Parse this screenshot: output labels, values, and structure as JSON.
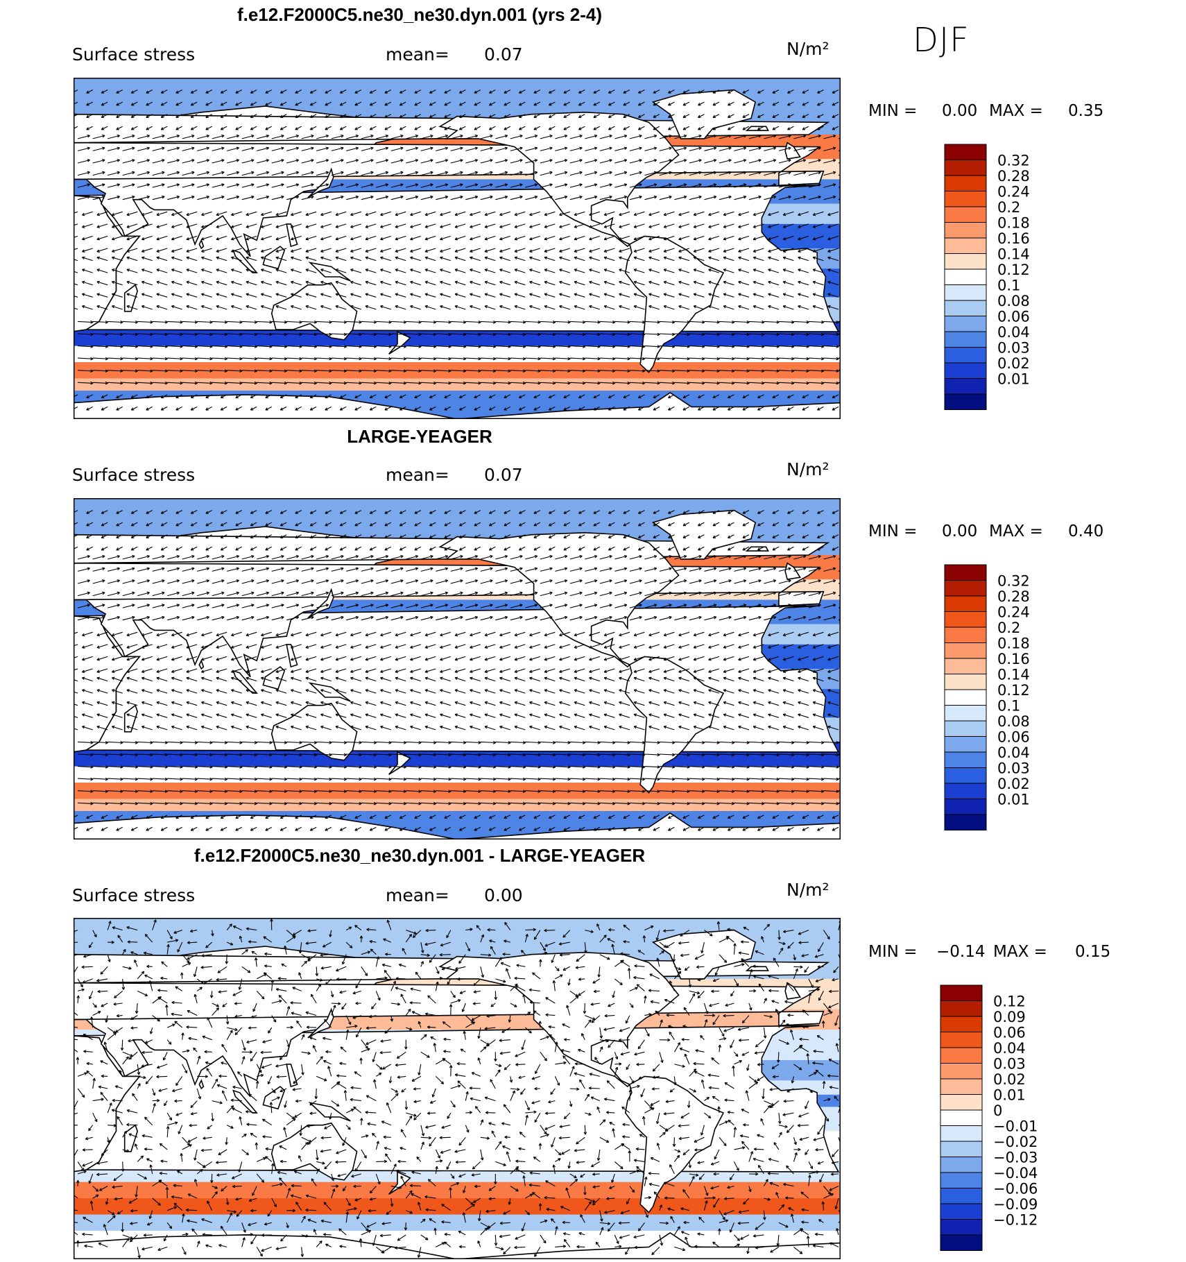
{
  "season": "DJF",
  "panels": [
    {
      "title": "f.e12.F2000C5.ne30_ne30.dyn.001 (yrs 2-4)",
      "variable": "Surface stress",
      "mean_label": "mean=",
      "mean_value": "0.07",
      "units": "N/m²",
      "min_label": "MIN =",
      "min_value": "0.00",
      "max_label": "MAX =",
      "max_value": "0.35",
      "colorbar": {
        "levels": [
          "0.32",
          "0.28",
          "0.24",
          "0.2",
          "0.18",
          "0.16",
          "0.14",
          "0.12",
          "0.1",
          "0.08",
          "0.06",
          "0.04",
          "0.03",
          "0.02",
          "0.01"
        ],
        "colors": [
          "#8b0000",
          "#b31d00",
          "#d93a00",
          "#f0571a",
          "#f97a45",
          "#fb9a6c",
          "#fdbb98",
          "#fde1c8",
          "#ffffff",
          "#d6e8fa",
          "#aacbf2",
          "#7ca9ec",
          "#4e84e6",
          "#2a5fe0",
          "#1a3fd2",
          "#0f22b0",
          "#000e80"
        ]
      }
    },
    {
      "title": "LARGE-YEAGER",
      "variable": "Surface stress",
      "mean_label": "mean=",
      "mean_value": "0.07",
      "units": "N/m²",
      "min_label": "MIN =",
      "min_value": "0.00",
      "max_label": "MAX =",
      "max_value": "0.40",
      "colorbar": {
        "levels": [
          "0.32",
          "0.28",
          "0.24",
          "0.2",
          "0.18",
          "0.16",
          "0.14",
          "0.12",
          "0.1",
          "0.08",
          "0.06",
          "0.04",
          "0.03",
          "0.02",
          "0.01"
        ],
        "colors": [
          "#8b0000",
          "#b31d00",
          "#d93a00",
          "#f0571a",
          "#f97a45",
          "#fb9a6c",
          "#fdbb98",
          "#fde1c8",
          "#ffffff",
          "#d6e8fa",
          "#aacbf2",
          "#7ca9ec",
          "#4e84e6",
          "#2a5fe0",
          "#1a3fd2",
          "#0f22b0",
          "#000e80"
        ]
      }
    },
    {
      "title": "f.e12.F2000C5.ne30_ne30.dyn.001 - LARGE-YEAGER",
      "variable": "Surface stress",
      "mean_label": "mean=",
      "mean_value": "0.00",
      "units": "N/m²",
      "min_label": "MIN =",
      "min_value": "−0.14",
      "max_label": "MAX =",
      "max_value": "0.15",
      "colorbar": {
        "levels": [
          "0.12",
          "0.09",
          "0.06",
          "0.04",
          "0.03",
          "0.02",
          "0.01",
          "0",
          "−0.01",
          "−0.02",
          "−0.03",
          "−0.04",
          "−0.06",
          "−0.09",
          "−0.12"
        ],
        "colors": [
          "#8b0000",
          "#b31d00",
          "#d93a00",
          "#f0571a",
          "#f97a45",
          "#fb9a6c",
          "#fdbb98",
          "#fde1c8",
          "#ffffff",
          "#d6e8fa",
          "#aacbf2",
          "#7ca9ec",
          "#4e84e6",
          "#2a5fe0",
          "#1a3fd2",
          "#0f22b0",
          "#000e80"
        ]
      }
    }
  ],
  "chart_data": [
    {
      "type": "heatmap",
      "title": "f.e12.F2000C5.ne30_ne30.dyn.001 (yrs 2-4)",
      "subtitle": "Surface stress",
      "units": "N/m²",
      "mean": 0.07,
      "min": 0.0,
      "max": 0.35,
      "contour_levels": [
        0.01,
        0.02,
        0.03,
        0.04,
        0.06,
        0.08,
        0.1,
        0.12,
        0.14,
        0.16,
        0.18,
        0.2,
        0.24,
        0.28,
        0.32
      ],
      "overlay": "wind stress vectors",
      "season": "DJF"
    },
    {
      "type": "heatmap",
      "title": "LARGE-YEAGER",
      "subtitle": "Surface stress",
      "units": "N/m²",
      "mean": 0.07,
      "min": 0.0,
      "max": 0.4,
      "contour_levels": [
        0.01,
        0.02,
        0.03,
        0.04,
        0.06,
        0.08,
        0.1,
        0.12,
        0.14,
        0.16,
        0.18,
        0.2,
        0.24,
        0.28,
        0.32
      ],
      "overlay": "wind stress vectors",
      "season": "DJF"
    },
    {
      "type": "heatmap",
      "title": "f.e12.F2000C5.ne30_ne30.dyn.001 - LARGE-YEAGER",
      "subtitle": "Surface stress",
      "units": "N/m²",
      "mean": 0.0,
      "min": -0.14,
      "max": 0.15,
      "contour_levels": [
        -0.12,
        -0.09,
        -0.06,
        -0.04,
        -0.03,
        -0.02,
        -0.01,
        0,
        0.01,
        0.02,
        0.03,
        0.04,
        0.06,
        0.09,
        0.12
      ],
      "overlay": "wind stress difference vectors",
      "season": "DJF"
    }
  ]
}
